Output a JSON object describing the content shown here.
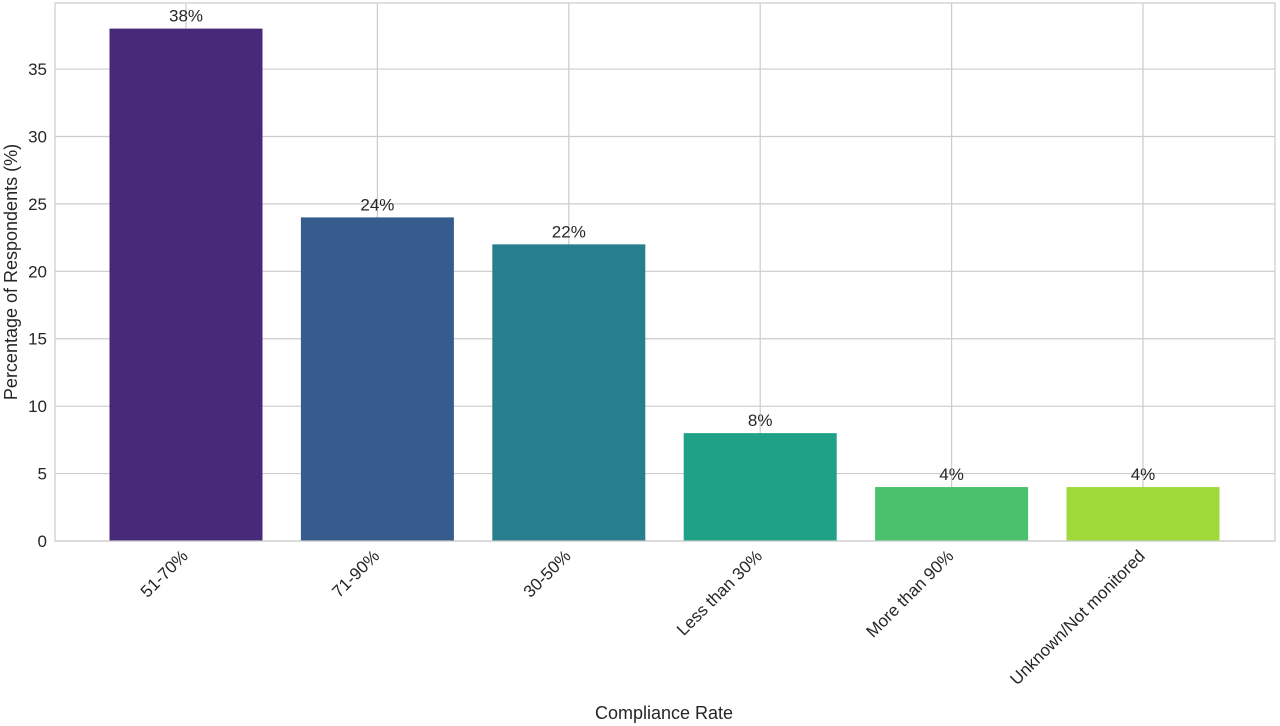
{
  "chart_data": {
    "type": "bar",
    "categories": [
      "51-70%",
      "71-90%",
      "30-50%",
      "Less than 30%",
      "More than 90%",
      "Unknown/Not monitored"
    ],
    "values": [
      38,
      24,
      22,
      8,
      4,
      4
    ],
    "data_labels": [
      "38%",
      "24%",
      "22%",
      "8%",
      "4%",
      "4%"
    ],
    "colors": [
      "#482878",
      "#365C8D",
      "#277F8E",
      "#1FA187",
      "#4AC16D",
      "#9FDA3A"
    ],
    "title": "",
    "xlabel": "Compliance Rate",
    "ylabel": "Percentage of Respondents (%)",
    "ylim": [
      0,
      39.9
    ],
    "yticks": [
      0,
      5,
      10,
      15,
      20,
      25,
      30,
      35
    ],
    "grid": true,
    "legend": "none"
  }
}
